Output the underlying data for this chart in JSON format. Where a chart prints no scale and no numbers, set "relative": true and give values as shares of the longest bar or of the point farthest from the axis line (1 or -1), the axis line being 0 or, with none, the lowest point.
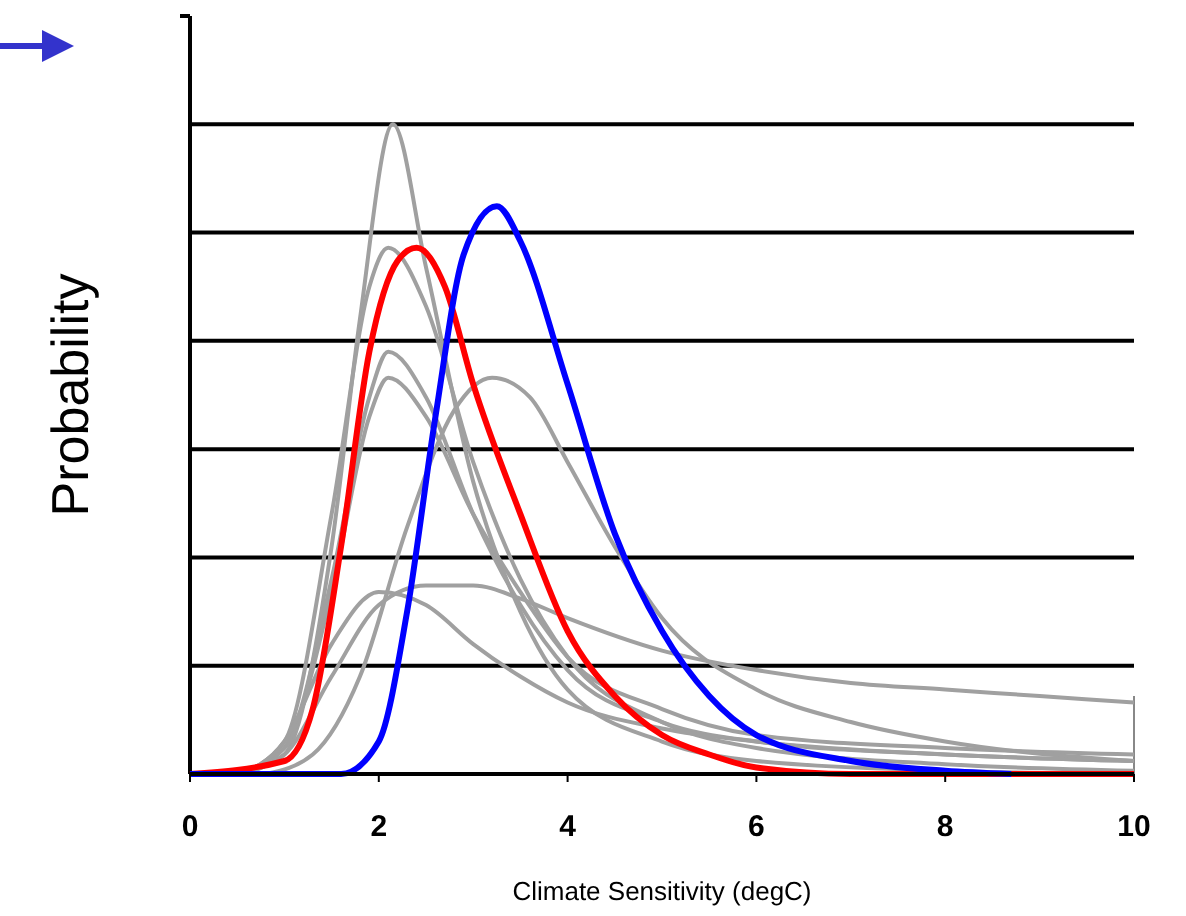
{
  "chart_data": {
    "type": "line",
    "xlabel": "Climate Sensitivity (degC)",
    "ylabel": "Probability",
    "relative": true,
    "grid": "y",
    "marker": "none",
    "line_style": "solid",
    "xlim": [
      0,
      10
    ],
    "xticks": [
      0,
      2,
      4,
      6,
      8,
      10
    ],
    "series": [
      {
        "color": "#a0a0a0",
        "x": [
          0.5,
          1,
          1.5,
          1.8,
          2.15,
          2.5,
          3,
          3.5,
          4,
          5,
          6,
          8,
          10
        ],
        "values": [
          0,
          0.03,
          0.35,
          0.7,
          1,
          0.78,
          0.45,
          0.25,
          0.13,
          0.05,
          0.02,
          0.005,
          0
        ]
      },
      {
        "color": "#a0a0a0",
        "x": [
          0.5,
          1,
          1.5,
          1.9,
          2.1,
          2.5,
          3,
          3.5,
          4,
          5,
          6,
          8,
          10
        ],
        "values": [
          0,
          0.05,
          0.4,
          0.75,
          0.81,
          0.72,
          0.48,
          0.3,
          0.18,
          0.08,
          0.04,
          0.015,
          0.005
        ]
      },
      {
        "color": "#a0a0a0",
        "x": [
          0.5,
          1,
          1.5,
          1.9,
          2.1,
          2.5,
          3,
          3.5,
          4,
          5,
          6,
          8,
          10
        ],
        "values": [
          0,
          0.04,
          0.3,
          0.58,
          0.65,
          0.58,
          0.4,
          0.26,
          0.16,
          0.08,
          0.05,
          0.03,
          0.02
        ]
      },
      {
        "color": "#a0a0a0",
        "x": [
          0.5,
          1,
          1.5,
          1.9,
          2.1,
          2.5,
          3,
          3.5,
          4,
          5,
          6,
          8,
          10
        ],
        "values": [
          0,
          0.04,
          0.28,
          0.55,
          0.61,
          0.55,
          0.4,
          0.28,
          0.18,
          0.1,
          0.06,
          0.04,
          0.03
        ]
      },
      {
        "color": "#a0a0a0",
        "x": [
          0.8,
          1.3,
          1.8,
          2.3,
          2.8,
          3.2,
          3.6,
          4,
          4.5,
          5,
          6,
          7,
          8,
          10
        ],
        "values": [
          0,
          0.03,
          0.15,
          0.38,
          0.56,
          0.61,
          0.58,
          0.48,
          0.35,
          0.24,
          0.13,
          0.08,
          0.05,
          0.02
        ]
      },
      {
        "color": "#a0a0a0",
        "x": [
          0.5,
          1,
          1.5,
          2,
          2.5,
          3,
          3.5,
          4,
          5,
          6,
          7,
          8,
          9,
          10
        ],
        "values": [
          0,
          0.03,
          0.15,
          0.26,
          0.29,
          0.29,
          0.27,
          0.24,
          0.19,
          0.16,
          0.14,
          0.13,
          0.12,
          0.11
        ]
      },
      {
        "color": "#a0a0a0",
        "x": [
          0.5,
          1,
          1.5,
          2,
          2.5,
          3,
          3.5,
          4,
          5,
          6,
          8,
          10
        ],
        "values": [
          0,
          0.05,
          0.2,
          0.28,
          0.26,
          0.2,
          0.15,
          0.11,
          0.07,
          0.05,
          0.03,
          0.02
        ]
      },
      {
        "color": "#ff0000",
        "x": [
          0,
          1,
          1.3,
          1.6,
          1.9,
          2.2,
          2.4,
          2.7,
          3,
          3.5,
          4,
          4.5,
          5,
          5.5,
          6,
          7,
          10
        ],
        "values": [
          0,
          0.02,
          0.1,
          0.35,
          0.65,
          0.79,
          0.81,
          0.75,
          0.6,
          0.4,
          0.22,
          0.12,
          0.06,
          0.03,
          0.01,
          0,
          0
        ]
      },
      {
        "color": "#0000ff",
        "x": [
          0,
          1.6,
          2,
          2.3,
          2.6,
          2.9,
          3.25,
          3.5,
          4,
          4.5,
          5,
          5.5,
          6,
          7,
          8,
          8.7
        ],
        "values": [
          0,
          0,
          0.05,
          0.25,
          0.55,
          0.8,
          0.874,
          0.82,
          0.6,
          0.37,
          0.22,
          0.12,
          0.06,
          0.02,
          0.005,
          0
        ]
      }
    ]
  }
}
